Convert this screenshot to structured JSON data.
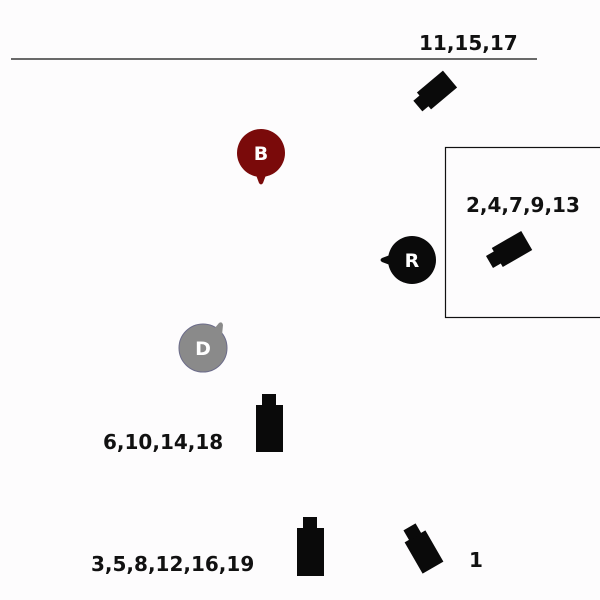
{
  "markers": [
    {
      "id": "B",
      "letter": "B",
      "color": "#7a0a0a"
    },
    {
      "id": "R",
      "letter": "R",
      "color": "#0a0a0a"
    },
    {
      "id": "D",
      "letter": "D",
      "color": "#8a8a8a"
    }
  ],
  "cameras": [
    {
      "id": "cam-top",
      "label": "11,15,17"
    },
    {
      "id": "cam-box",
      "label": "2,4,7,9,13"
    },
    {
      "id": "cam-mid",
      "label": "6,10,14,18"
    },
    {
      "id": "cam-bottom",
      "label": "3,5,8,12,16,19"
    },
    {
      "id": "cam-one",
      "label": "1"
    }
  ],
  "colors": {
    "background": "#fdfcfd",
    "camera": "#0a0a0a",
    "line": "#111111"
  },
  "icons": {
    "camera": "video-camera-icon",
    "marker": "pin-marker-icon"
  }
}
